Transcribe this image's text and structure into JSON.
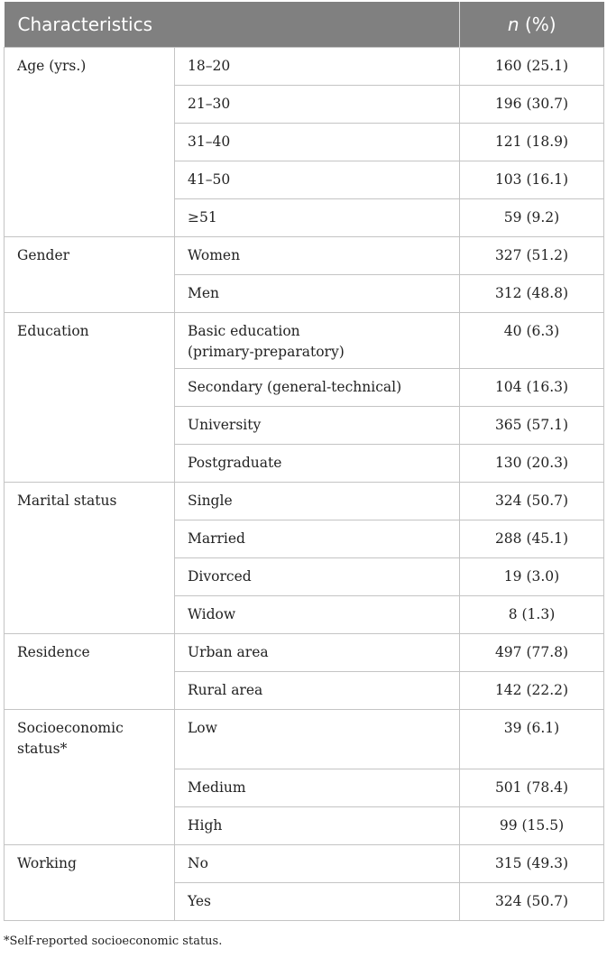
{
  "header": {
    "characteristics": "Characteristics",
    "n_label": "n",
    "pct_label": " (%)"
  },
  "groups": [
    {
      "label": "Age (yrs.)",
      "rows": [
        {
          "sub": "18–20",
          "val": "160 (25.1)"
        },
        {
          "sub": "21–30",
          "val": "196 (30.7)"
        },
        {
          "sub": "31–40",
          "val": "121 (18.9)"
        },
        {
          "sub": "41–50",
          "val": "103 (16.1)"
        },
        {
          "sub": "≥51",
          "val": "59 (9.2)"
        }
      ]
    },
    {
      "label": "Gender",
      "rows": [
        {
          "sub": "Women",
          "val": "327 (51.2)"
        },
        {
          "sub": "Men",
          "val": "312 (48.8)"
        }
      ]
    },
    {
      "label": "Education",
      "rows": [
        {
          "sub": "Basic education (primary-preparatory)",
          "val": "40 (6.3)"
        },
        {
          "sub": "Secondary (general-technical)",
          "val": "104 (16.3)"
        },
        {
          "sub": "University",
          "val": "365 (57.1)"
        },
        {
          "sub": "Postgraduate",
          "val": "130 (20.3)"
        }
      ]
    },
    {
      "label": "Marital status",
      "rows": [
        {
          "sub": "Single",
          "val": "324 (50.7)"
        },
        {
          "sub": "Married",
          "val": "288 (45.1)"
        },
        {
          "sub": "Divorced",
          "val": "19 (3.0)"
        },
        {
          "sub": "Widow",
          "val": "8 (1.3)"
        }
      ]
    },
    {
      "label": "Residence",
      "rows": [
        {
          "sub": "Urban area",
          "val": "497 (77.8)"
        },
        {
          "sub": "Rural area",
          "val": "142 (22.2)"
        }
      ]
    },
    {
      "label": "Socioeconomic status*",
      "rows": [
        {
          "sub": "Low",
          "val": "39 (6.1)"
        },
        {
          "sub": "Medium",
          "val": "501 (78.4)"
        },
        {
          "sub": "High",
          "val": "99 (15.5)"
        }
      ]
    },
    {
      "label": "Working",
      "rows": [
        {
          "sub": "No",
          "val": "315 (49.3)"
        },
        {
          "sub": "Yes",
          "val": "324 (50.7)"
        }
      ]
    }
  ],
  "footnote": "*Self-reported socioeconomic status."
}
